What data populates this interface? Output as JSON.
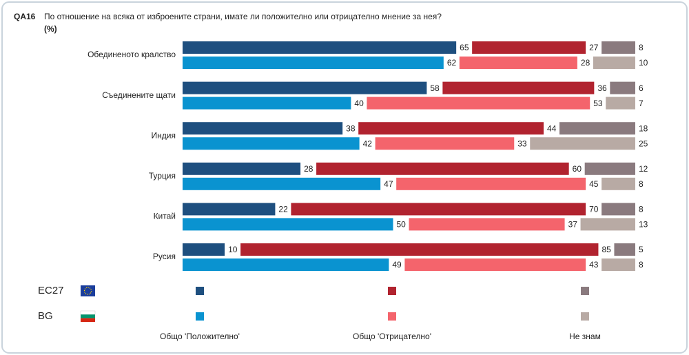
{
  "chart_data": {
    "type": "stacked-bar-horizontal",
    "code": "QA16",
    "title": "По отношение на всяка от изброените страни, имате ли положително или отрицателно мнение за нея?",
    "subtitle": "(%)",
    "categories": [
      "Обединеното кралство",
      "Съединените щати",
      "Индия",
      "Турция",
      "Китай",
      "Русия"
    ],
    "segments": [
      "Общо 'Положително'",
      "Общо 'Отрицателно'",
      "Не знам"
    ],
    "series": [
      {
        "name": "EC27",
        "colors": [
          "#1e4f7f",
          "#b1232f",
          "#8a7a7e"
        ],
        "values": [
          [
            65,
            27,
            8
          ],
          [
            58,
            36,
            6
          ],
          [
            38,
            44,
            18
          ],
          [
            28,
            60,
            12
          ],
          [
            22,
            70,
            8
          ],
          [
            10,
            85,
            5
          ]
        ]
      },
      {
        "name": "BG",
        "colors": [
          "#0a93d0",
          "#f4646c",
          "#b8aaa4"
        ],
        "values": [
          [
            62,
            28,
            10
          ],
          [
            40,
            53,
            7
          ],
          [
            42,
            33,
            25
          ],
          [
            47,
            45,
            8
          ],
          [
            50,
            37,
            13
          ],
          [
            49,
            43,
            8
          ]
        ]
      }
    ]
  }
}
